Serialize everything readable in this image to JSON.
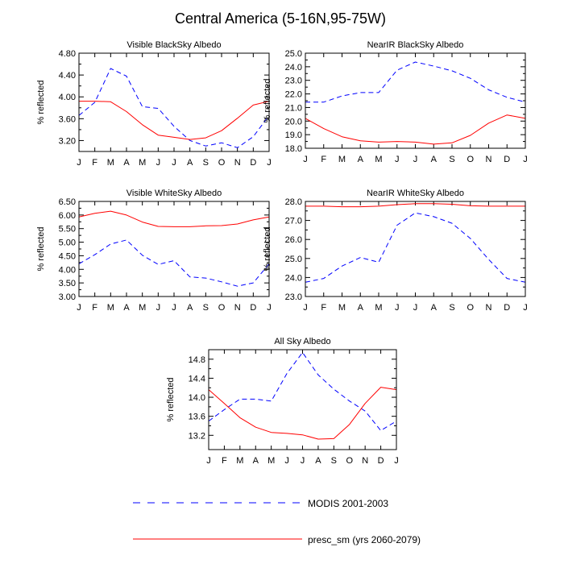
{
  "figure": {
    "title": "Central America (5-16N,95-75W)"
  },
  "legend": {
    "items": [
      {
        "label": "MODIS 2001-2003",
        "color": "#0000ff",
        "dash": "dashed"
      },
      {
        "label": "presc_sm (yrs 2060-2079)",
        "color": "#ff0000",
        "dash": "solid"
      }
    ]
  },
  "colors": {
    "modis": "#0000ff",
    "presc": "#ff0000"
  },
  "chart_data": [
    {
      "type": "line",
      "title": "Visible BlackSky Albedo",
      "xlabel": "",
      "ylabel": "% reflected",
      "categories": [
        "J",
        "F",
        "M",
        "A",
        "M",
        "J",
        "J",
        "A",
        "S",
        "O",
        "N",
        "D",
        "J"
      ],
      "ylim": [
        3.0,
        4.8
      ],
      "yticks": [
        3.2,
        3.6,
        4.0,
        4.4,
        4.8
      ],
      "ytick_labels": [
        "3.20",
        "3.60",
        "4.00",
        "4.40",
        "4.80"
      ],
      "series": [
        {
          "name": "MODIS 2001-2003",
          "values": [
            3.66,
            3.9,
            4.52,
            4.38,
            3.82,
            3.79,
            3.46,
            3.2,
            3.1,
            3.16,
            3.07,
            3.27,
            3.66
          ]
        },
        {
          "name": "presc_sm (yrs 2060-2079)",
          "values": [
            3.92,
            3.92,
            3.91,
            3.73,
            3.49,
            3.3,
            3.26,
            3.22,
            3.25,
            3.38,
            3.61,
            3.85,
            3.92
          ]
        }
      ]
    },
    {
      "type": "line",
      "title": "NearIR BlackSky Albedo",
      "xlabel": "",
      "ylabel": "% reflected",
      "categories": [
        "J",
        "F",
        "M",
        "A",
        "M",
        "J",
        "J",
        "A",
        "S",
        "O",
        "N",
        "D",
        "J"
      ],
      "ylim": [
        18.0,
        25.0
      ],
      "yticks": [
        18.0,
        19.0,
        20.0,
        21.0,
        22.0,
        23.0,
        24.0,
        25.0
      ],
      "ytick_labels": [
        "18.0",
        "19.0",
        "20.0",
        "21.0",
        "22.0",
        "23.0",
        "24.0",
        "25.0"
      ],
      "series": [
        {
          "name": "MODIS 2001-2003",
          "values": [
            21.4,
            21.4,
            21.85,
            22.1,
            22.1,
            23.75,
            24.35,
            24.05,
            23.7,
            23.15,
            22.3,
            21.75,
            21.4
          ]
        },
        {
          "name": "presc_sm (yrs 2060-2079)",
          "values": [
            20.2,
            19.45,
            18.85,
            18.55,
            18.45,
            18.5,
            18.45,
            18.3,
            18.4,
            18.95,
            19.85,
            20.45,
            20.2
          ]
        }
      ]
    },
    {
      "type": "line",
      "title": "Visible WhiteSky Albedo",
      "xlabel": "",
      "ylabel": "% reflected",
      "categories": [
        "J",
        "F",
        "M",
        "A",
        "M",
        "J",
        "J",
        "A",
        "S",
        "O",
        "N",
        "D",
        "J"
      ],
      "ylim": [
        3.0,
        6.5
      ],
      "yticks": [
        3.0,
        3.5,
        4.0,
        4.5,
        5.0,
        5.5,
        6.0,
        6.5
      ],
      "ytick_labels": [
        "3.00",
        "3.50",
        "4.00",
        "4.50",
        "5.00",
        "5.50",
        "6.00",
        "6.50"
      ],
      "series": [
        {
          "name": "MODIS 2001-2003",
          "values": [
            4.2,
            4.54,
            4.93,
            5.08,
            4.52,
            4.18,
            4.32,
            3.72,
            3.68,
            3.54,
            3.38,
            3.5,
            4.2
          ]
        },
        {
          "name": "presc_sm (yrs 2060-2079)",
          "values": [
            5.93,
            6.06,
            6.14,
            6.0,
            5.74,
            5.58,
            5.57,
            5.57,
            5.6,
            5.61,
            5.67,
            5.82,
            5.93
          ]
        }
      ]
    },
    {
      "type": "line",
      "title": "NearIR WhiteSky Albedo",
      "xlabel": "",
      "ylabel": "% reflected",
      "categories": [
        "J",
        "F",
        "M",
        "A",
        "M",
        "J",
        "J",
        "A",
        "S",
        "O",
        "N",
        "D",
        "J"
      ],
      "ylim": [
        23.0,
        28.0
      ],
      "yticks": [
        23.0,
        24.0,
        25.0,
        26.0,
        27.0,
        28.0
      ],
      "ytick_labels": [
        "23.0",
        "24.0",
        "25.0",
        "26.0",
        "27.0",
        "28.0"
      ],
      "series": [
        {
          "name": "MODIS 2001-2003",
          "values": [
            23.75,
            23.95,
            24.6,
            25.05,
            24.8,
            26.75,
            27.4,
            27.2,
            26.85,
            26.05,
            24.95,
            23.95,
            23.75
          ]
        },
        {
          "name": "presc_sm (yrs 2060-2079)",
          "values": [
            27.75,
            27.75,
            27.72,
            27.72,
            27.75,
            27.83,
            27.88,
            27.88,
            27.85,
            27.77,
            27.75,
            27.75,
            27.75
          ]
        }
      ]
    },
    {
      "type": "line",
      "title": "All Sky Albedo",
      "xlabel": "",
      "ylabel": "% reflected",
      "categories": [
        "J",
        "F",
        "M",
        "A",
        "M",
        "J",
        "J",
        "A",
        "S",
        "O",
        "N",
        "D",
        "J"
      ],
      "ylim": [
        12.9,
        15.0
      ],
      "yticks": [
        13.2,
        13.6,
        14.0,
        14.4,
        14.8
      ],
      "ytick_labels": [
        "13.2",
        "13.6",
        "14.0",
        "14.4",
        "14.8"
      ],
      "series": [
        {
          "name": "MODIS 2001-2003",
          "values": [
            13.5,
            13.74,
            13.96,
            13.96,
            13.92,
            14.5,
            14.94,
            14.47,
            14.17,
            13.92,
            13.71,
            13.3,
            13.5
          ]
        },
        {
          "name": "presc_sm (yrs 2060-2079)",
          "values": [
            14.16,
            13.87,
            13.57,
            13.37,
            13.26,
            13.24,
            13.21,
            13.12,
            13.13,
            13.43,
            13.87,
            14.21,
            14.16
          ]
        }
      ]
    }
  ]
}
